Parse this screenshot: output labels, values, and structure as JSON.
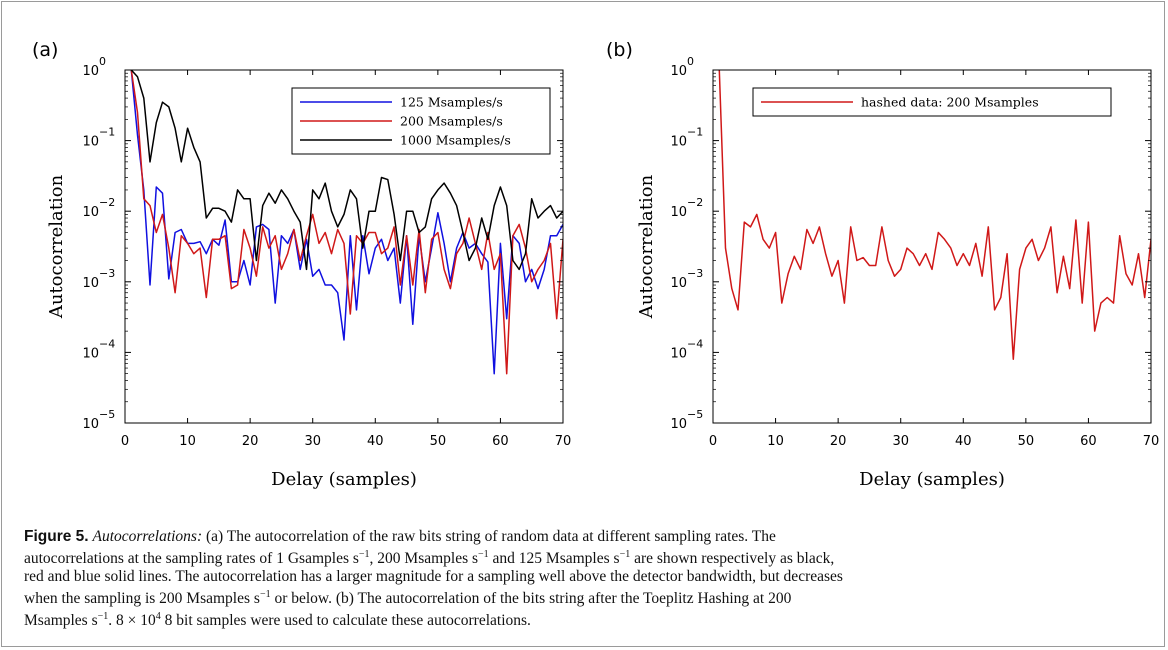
{
  "chart_data": [
    {
      "type": "line",
      "panel_label": "(a)",
      "xlabel": "Delay (samples)",
      "ylabel": "Autocorrelation",
      "y_scale": "log",
      "xlim": [
        0,
        70
      ],
      "ylim": [
        1e-05,
        1
      ],
      "x_ticks": [
        "0",
        "10",
        "20",
        "30",
        "40",
        "50",
        "60",
        "70"
      ],
      "y_tick_exponents": [
        "0",
        "−1",
        "−2",
        "−3",
        "−4",
        "−5"
      ],
      "legend_position": "top-right",
      "series": [
        {
          "name": "125 Msamples/s",
          "color": "#1010e0",
          "x_start": 1,
          "values": [
            1,
            0.12,
            0.02,
            0.0009,
            0.022,
            0.018,
            0.0011,
            0.005,
            0.0055,
            0.0035,
            0.0035,
            0.0037,
            0.0025,
            0.004,
            0.0033,
            0.0075,
            0.001,
            0.001,
            0.002,
            0.0009,
            0.006,
            0.0065,
            0.0055,
            0.0005,
            0.0045,
            0.0035,
            0.0055,
            0.0015,
            0.004,
            0.0012,
            0.0015,
            0.0009,
            0.0009,
            0.0007,
            0.00015,
            0.0045,
            0.0004,
            0.0045,
            0.0013,
            0.003,
            0.004,
            0.002,
            0.003,
            0.0005,
            0.0045,
            0.00025,
            0.0045,
            0.001,
            0.003,
            0.0095,
            0.0035,
            0.001,
            0.003,
            0.005,
            0.003,
            0.0035,
            0.0025,
            0.0019,
            5e-05,
            0.0035,
            0.0003,
            0.0045,
            0.0035,
            0.001,
            0.0015,
            0.0008,
            0.0015,
            0.0045,
            0.0045,
            0.0065,
            0.003,
            0.0007
          ]
        },
        {
          "name": "200 Msamples/s",
          "color": "#d01818",
          "x_start": 1,
          "values": [
            1,
            0.25,
            0.015,
            0.012,
            0.005,
            0.009,
            0.003,
            0.0007,
            0.0045,
            0.0035,
            0.0025,
            0.003,
            0.0006,
            0.004,
            0.004,
            0.0045,
            0.0008,
            0.0009,
            0.0055,
            0.003,
            0.0012,
            0.006,
            0.003,
            0.0045,
            0.0015,
            0.0025,
            0.0055,
            0.002,
            0.0045,
            0.009,
            0.0035,
            0.005,
            0.0025,
            0.0055,
            0.0035,
            0.00035,
            0.0045,
            0.0035,
            0.005,
            0.005,
            0.0025,
            0.003,
            0.006,
            0.0009,
            0.0045,
            0.0009,
            0.0055,
            0.0007,
            0.004,
            0.005,
            0.0015,
            0.0008,
            0.0025,
            0.0035,
            0.008,
            0.0035,
            0.0015,
            0.005,
            0.0015,
            0.0025,
            5e-05,
            0.0045,
            0.0065,
            0.003,
            0.001,
            0.0015,
            0.002,
            0.0035,
            0.0003,
            0.004,
            0.0035,
            0.004
          ]
        },
        {
          "name": "1000 Msamples/s",
          "color": "#000000",
          "x_start": 1,
          "values": [
            1,
            0.8,
            0.4,
            0.05,
            0.18,
            0.35,
            0.3,
            0.15,
            0.05,
            0.15,
            0.08,
            0.05,
            0.008,
            0.011,
            0.011,
            0.01,
            0.007,
            0.02,
            0.015,
            0.015,
            0.002,
            0.012,
            0.018,
            0.013,
            0.02,
            0.015,
            0.01,
            0.007,
            0.0015,
            0.02,
            0.015,
            0.025,
            0.01,
            0.006,
            0.009,
            0.02,
            0.015,
            0.003,
            0.01,
            0.01,
            0.03,
            0.028,
            0.009,
            0.002,
            0.01,
            0.01,
            0.005,
            0.006,
            0.015,
            0.02,
            0.025,
            0.018,
            0.012,
            0.005,
            0.002,
            0.003,
            0.008,
            0.004,
            0.012,
            0.022,
            0.012,
            0.002,
            0.0015,
            0.0025,
            0.015,
            0.008,
            0.01,
            0.012,
            0.008,
            0.01
          ]
        }
      ]
    },
    {
      "type": "line",
      "panel_label": "(b)",
      "xlabel": "Delay (samples)",
      "ylabel": "Autocorrelation",
      "y_scale": "log",
      "xlim": [
        0,
        70
      ],
      "ylim": [
        1e-05,
        1
      ],
      "x_ticks": [
        "0",
        "10",
        "20",
        "30",
        "40",
        "50",
        "60",
        "70"
      ],
      "y_tick_exponents": [
        "0",
        "−1",
        "−2",
        "−3",
        "−4",
        "−5"
      ],
      "legend_position": "top-right",
      "series": [
        {
          "name": "hashed data: 200 Msamples",
          "color": "#d01818",
          "x_start": 1,
          "values": [
            1,
            0.003,
            0.0008,
            0.0004,
            0.007,
            0.006,
            0.009,
            0.004,
            0.003,
            0.005,
            0.0005,
            0.0013,
            0.0023,
            0.0015,
            0.0055,
            0.0035,
            0.006,
            0.0025,
            0.0012,
            0.002,
            0.0005,
            0.006,
            0.002,
            0.0022,
            0.0017,
            0.0017,
            0.006,
            0.002,
            0.0012,
            0.0015,
            0.003,
            0.0025,
            0.0017,
            0.0025,
            0.0015,
            0.005,
            0.004,
            0.003,
            0.0017,
            0.0025,
            0.0017,
            0.0035,
            0.0012,
            0.006,
            0.0004,
            0.0006,
            0.0025,
            8e-05,
            0.0015,
            0.003,
            0.004,
            0.002,
            0.003,
            0.006,
            0.0007,
            0.0023,
            0.0008,
            0.0075,
            0.0005,
            0.007,
            0.0002,
            0.0005,
            0.0006,
            0.0005,
            0.0045,
            0.0013,
            0.0009,
            0.0025,
            0.0006,
            0.004,
            0.012,
            0.0008,
            0.0018
          ]
        }
      ]
    }
  ],
  "caption": {
    "figure_label": "Figure 5.",
    "title_italic": "Autocorrelations:",
    "body_line1": " (a) The autocorrelation of the raw bits string of random data at different sampling rates. The",
    "line2_pre": "autocorrelations at the sampling rates of 1 Gsamples s",
    "line2_mid1": ", 200 Msamples s",
    "line2_mid2": " and 125 Msamples s",
    "line2_post": " are shown respectively as black,",
    "sup_minus_one": "−1",
    "body_line3": "red and blue solid lines. The autocorrelation has a larger magnitude for a sampling well above the detector bandwidth, but decreases",
    "line4_pre": "when the sampling is 200 Msamples s",
    "line4_post": " or below. (b) The autocorrelation of the bits string after the Toeplitz Hashing at 200",
    "line5_pre": "Msamples s",
    "line5_mid": ". 8 × 10",
    "sup_four": "4",
    "line5_post": " 8 bit samples were used to calculate these autocorrelations."
  }
}
